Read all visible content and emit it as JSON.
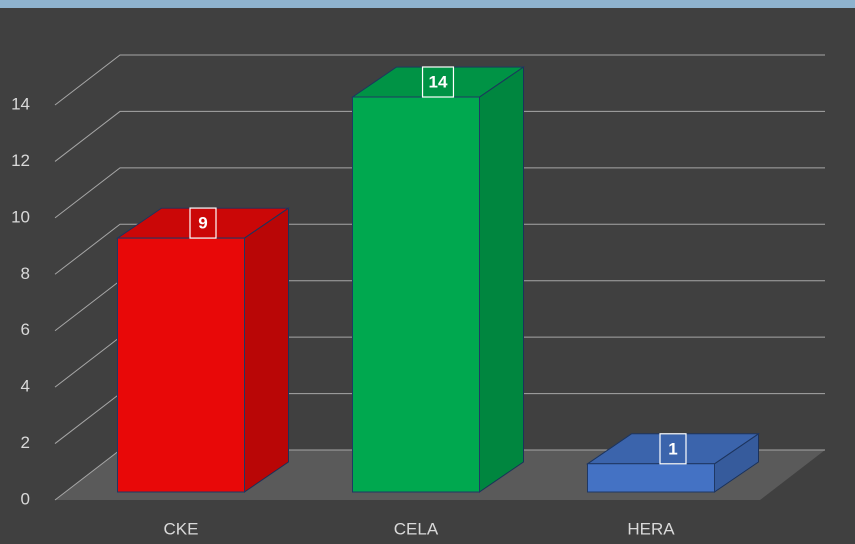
{
  "chart_data": {
    "type": "bar3d",
    "categories": [
      "CKE",
      "CELA",
      "HERA"
    ],
    "values": [
      9,
      14,
      1
    ],
    "colors": [
      "#e80808",
      "#00a84f",
      "#4472c4"
    ],
    "ylim": [
      0,
      14
    ],
    "yticks": [
      0,
      2,
      4,
      6,
      8,
      10,
      12,
      14
    ],
    "grid": true
  }
}
